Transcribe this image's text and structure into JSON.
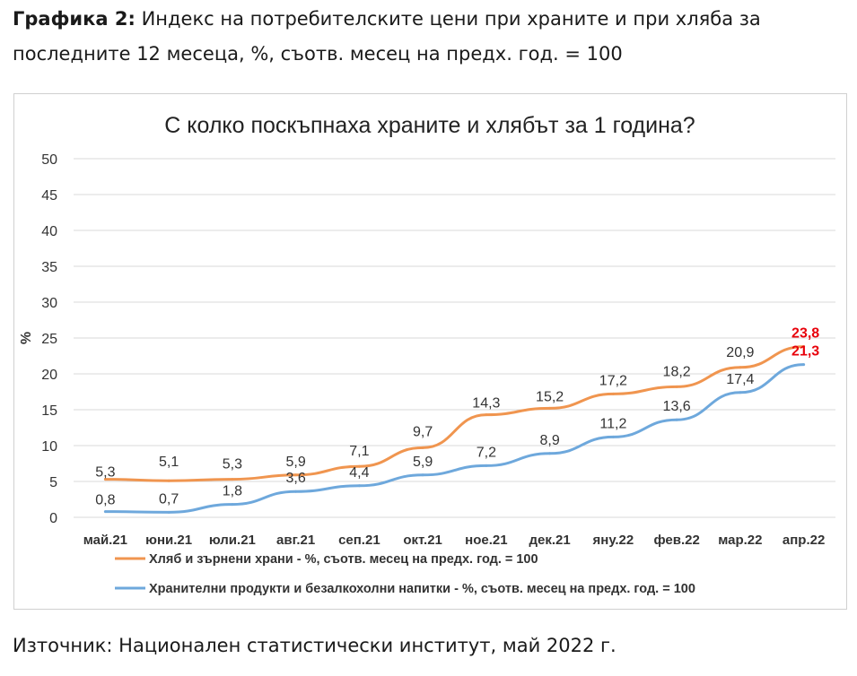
{
  "caption": {
    "label": "Графика 2:",
    "text": "Индекс на потребителските цени при храните и при хляба за последните 12 месеца, %, съотв. месец на предх. год. = 100"
  },
  "source": "Източник: Национален статистически институт, май 2022 г.",
  "chart_data": {
    "type": "line",
    "title": "С колко поскъпнаха храните и хлябът за 1 година?",
    "xlabel": "",
    "ylabel": "%",
    "ylim": [
      0,
      50
    ],
    "yticks": [
      "0",
      "5",
      "10",
      "15",
      "20",
      "25",
      "30",
      "35",
      "40",
      "45",
      "50"
    ],
    "grid": true,
    "legend_position": "bottom",
    "categories": [
      "май.21",
      "юни.21",
      "юли.21",
      "авг.21",
      "сеп.21",
      "окт.21",
      "ное.21",
      "дек.21",
      "яну.22",
      "фев.22",
      "мар.22",
      "апр.22"
    ],
    "series": [
      {
        "name": "Хляб и зърнени храни - %, съотв. месец на предх. год. = 100",
        "color": "#f0954f",
        "values": [
          5.3,
          5.1,
          5.3,
          5.9,
          7.1,
          9.7,
          14.3,
          15.2,
          17.2,
          18.2,
          20.9,
          23.8
        ],
        "labels": [
          "5,3",
          "5,1",
          "5,3",
          "5,9",
          "7,1",
          "9,7",
          "14,3",
          "15,2",
          "17,2",
          "18,2",
          "20,9",
          "23,8"
        ]
      },
      {
        "name": "Хранителни продукти и безалкохолни напитки - %, съотв. месец на предх. год. = 100",
        "color": "#6ea8dc",
        "values": [
          0.8,
          0.7,
          1.8,
          3.6,
          4.4,
          5.9,
          7.2,
          8.9,
          11.2,
          13.6,
          17.4,
          21.3
        ],
        "labels": [
          "0,8",
          "0,7",
          "1,8",
          "3,6",
          "4,4",
          "5,9",
          "7,2",
          "8,9",
          "11,2",
          "13,6",
          "17,4",
          "21,3"
        ]
      }
    ],
    "highlight_color": "#e8000b"
  }
}
